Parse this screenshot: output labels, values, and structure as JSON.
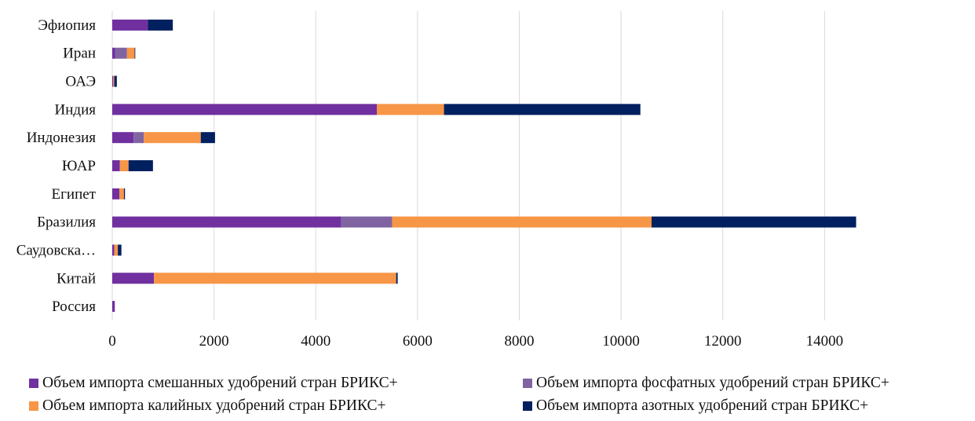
{
  "chart_data": {
    "type": "bar",
    "orientation": "horizontal",
    "stacked": true,
    "categories": [
      "Эфиопия",
      "Иран",
      "ОАЭ",
      "Индия",
      "Индонезия",
      "ЮАР",
      "Египет",
      "Бразилия",
      "Саудовска…",
      "Китай",
      "Россия"
    ],
    "series": [
      {
        "name": "Объем импорта смешанных удобрений стран БРИКС+",
        "color": "#7030A0",
        "values": [
          700,
          60,
          20,
          5200,
          420,
          150,
          140,
          4500,
          40,
          820,
          50
        ]
      },
      {
        "name": "Объем импорта фосфатных удобрений стран БРИКС+",
        "color": "#8064A2",
        "values": [
          0,
          230,
          0,
          0,
          200,
          0,
          0,
          1000,
          0,
          0,
          0
        ]
      },
      {
        "name": "Объем импорта калийных удобрений стран БРИКС+",
        "color": "#F79646",
        "values": [
          0,
          150,
          20,
          1320,
          1120,
          170,
          90,
          5100,
          70,
          4760,
          0
        ]
      },
      {
        "name": "Объем импорта азотных удобрений стран БРИКС+",
        "color": "#002060",
        "values": [
          490,
          10,
          50,
          3860,
          280,
          480,
          20,
          4020,
          70,
          30,
          0
        ]
      }
    ],
    "xlim": [
      0,
      16000
    ],
    "xticks": [
      "0",
      "2000",
      "4000",
      "6000",
      "8000",
      "10000",
      "12000",
      "14000"
    ],
    "grid": true,
    "legend_position": "bottom"
  }
}
